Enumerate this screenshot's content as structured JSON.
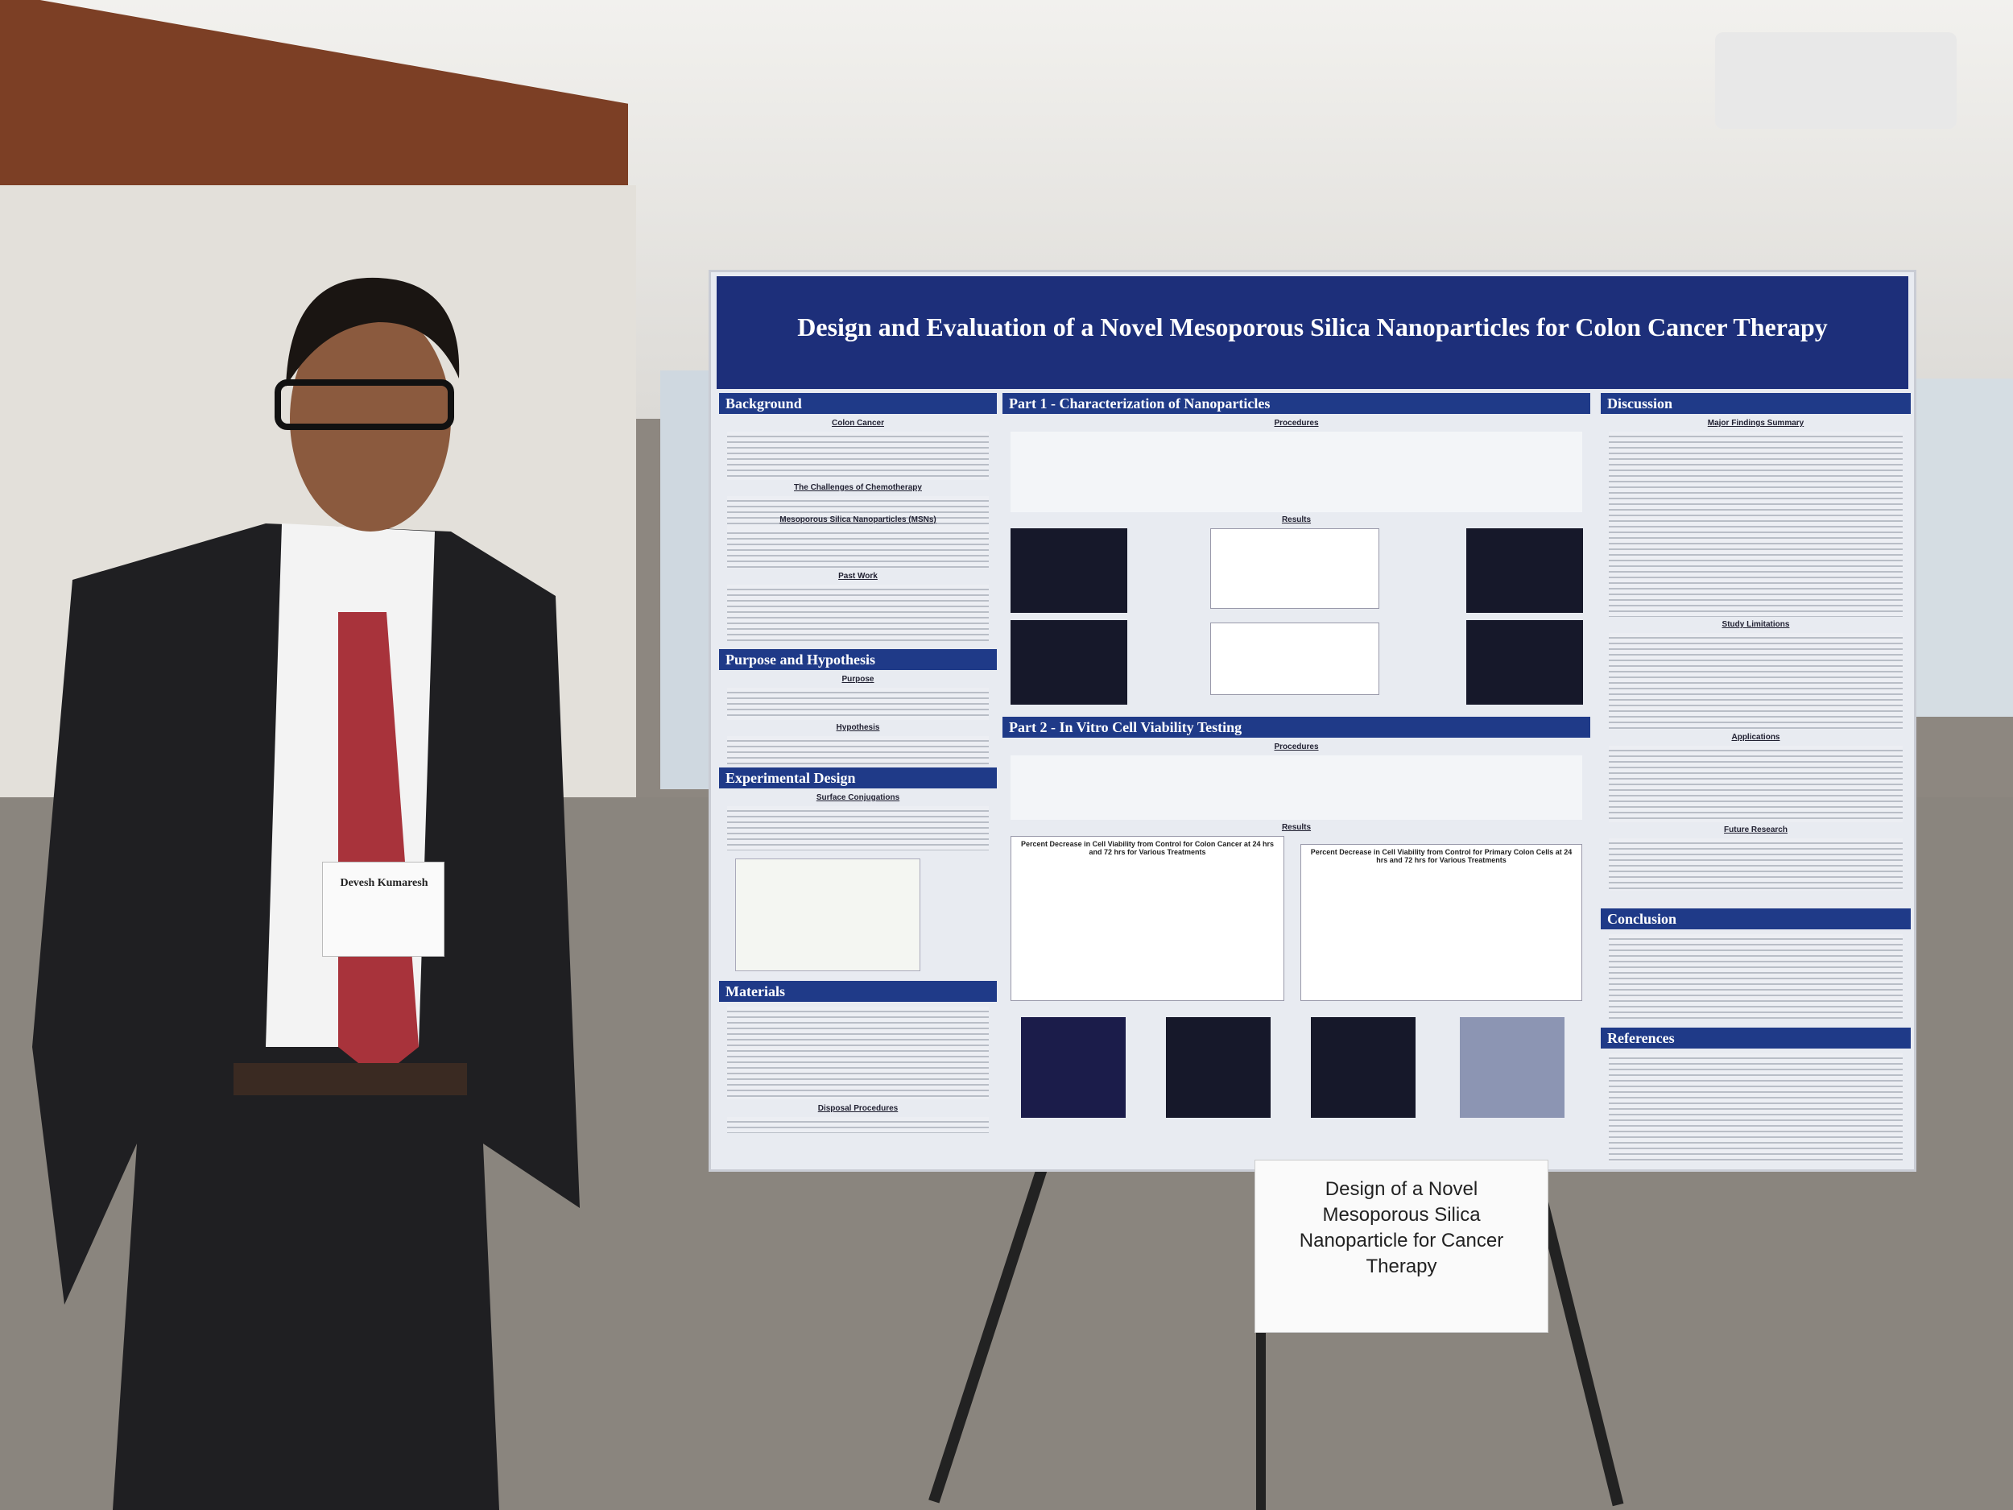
{
  "poster": {
    "title": "Design and Evaluation of a Novel Mesoporous Silica Nanoparticles for Colon Cancer Therapy",
    "sections": {
      "background": "Background",
      "purpose": "Purpose and Hypothesis",
      "experimental": "Experimental Design",
      "materials": "Materials",
      "part1": "Part 1 - Characterization of Nanoparticles",
      "part2": "Part 2 - In Vitro Cell Viability Testing",
      "discussion": "Discussion",
      "conclusion": "Conclusion",
      "references": "References"
    },
    "subheadings": {
      "colon_cancer": "Colon Cancer",
      "challenges": "The Challenges of Chemotherapy",
      "msn": "Mesoporous Silica Nanoparticles (MSNs)",
      "past_work": "Past Work",
      "purpose": "Purpose",
      "hypothesis": "Hypothesis",
      "surface": "Surface Conjugations",
      "disposal": "Disposal Procedures",
      "procedures1": "Procedures",
      "results1": "Results",
      "procedures2": "Procedures",
      "results2": "Results",
      "major": "Major Findings Summary",
      "limitations": "Study Limitations",
      "applications": "Applications",
      "future": "Future Research"
    },
    "charts": {
      "colon": "Percent Decrease in Cell Viability from Control for Colon Cancer at 24 hrs and 72 hrs for Various Treatments",
      "primary": "Percent Decrease in Cell Viability from Control for Primary Colon Cells at 24 hrs and 72 hrs for Various Treatments"
    }
  },
  "badge": {
    "name": "Devesh Kumaresh"
  },
  "sign": {
    "text": "Design of a Novel Mesoporous Silica Nanoparticle for Cancer Therapy"
  }
}
